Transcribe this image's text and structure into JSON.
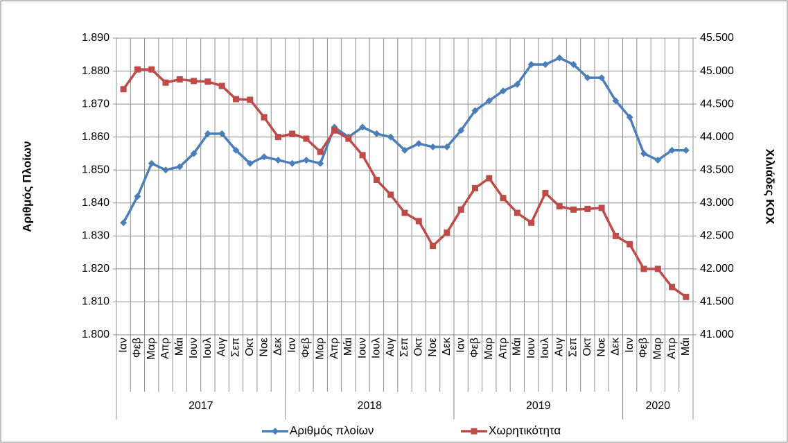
{
  "chart_data": {
    "type": "line",
    "y_label": "Αριθμός Πλοίων",
    "y2_label": "Χιλιάδες ΚΟΧ",
    "categories": [
      "Ιαν",
      "Φεβ",
      "Μαρ",
      "Απρ",
      "Μάι",
      "Ιουν",
      "Ιουλ",
      "Αυγ",
      "Σεπ",
      "Οκτ",
      "Νοε",
      "Δεκ",
      "Ιαν",
      "Φεβ",
      "Μαρ",
      "Απρ",
      "Μάι",
      "Ιουν",
      "Ιουλ",
      "Αυγ",
      "Σεπ",
      "Οκτ",
      "Νοε",
      "Δεκ",
      "Ιαν",
      "Φεβ",
      "Μαρ",
      "Απρ",
      "Μάι",
      "Ιουν",
      "Ιουλ",
      "Αυγ",
      "Σεπ",
      "Οκτ",
      "Νοε",
      "Δεκ",
      "Ιαν",
      "Φεβ",
      "Μαρ",
      "Απρ",
      "Μάι"
    ],
    "years": [
      "2017",
      "2018",
      "2019",
      "2020"
    ],
    "series": [
      {
        "name": "Αριθμός πλοίων",
        "color": "#4a7ebb",
        "marker": "diamond",
        "axis": "y",
        "values": [
          1834,
          1842,
          1852,
          1850,
          1851,
          1855,
          1861,
          1861,
          1856,
          1852,
          1854,
          1853,
          1852,
          1853,
          1852,
          1863,
          1860,
          1863,
          1861,
          1860,
          1856,
          1858,
          1857,
          1857,
          1862,
          1868,
          1871,
          1874,
          1876,
          1882,
          1882,
          1884,
          1882,
          1878,
          1878,
          1871,
          1866,
          1855,
          1853,
          1856,
          1856
        ]
      },
      {
        "name": "Χωρητικότητα",
        "color": "#be4b48",
        "marker": "square",
        "axis": "y2",
        "values": [
          44725,
          45025,
          45025,
          44825,
          44875,
          44850,
          44840,
          44775,
          44575,
          44565,
          44300,
          44000,
          44050,
          43975,
          43775,
          44100,
          43975,
          43725,
          43350,
          43125,
          42850,
          42725,
          42350,
          42550,
          42900,
          43225,
          43375,
          43075,
          42850,
          42700,
          43150,
          42950,
          42900,
          42910,
          42925,
          42500,
          42375,
          42000,
          42000,
          41725,
          41575
        ]
      }
    ],
    "ylim": [
      1800,
      1890
    ],
    "yticks": [
      {
        "value": 1800,
        "label": "1.800"
      },
      {
        "value": 1810,
        "label": "1.810"
      },
      {
        "value": 1820,
        "label": "1.820"
      },
      {
        "value": 1830,
        "label": "1.830"
      },
      {
        "value": 1840,
        "label": "1.840"
      },
      {
        "value": 1850,
        "label": "1.850"
      },
      {
        "value": 1860,
        "label": "1.860"
      },
      {
        "value": 1870,
        "label": "1.870"
      },
      {
        "value": 1880,
        "label": "1.880"
      },
      {
        "value": 1890,
        "label": "1.890"
      }
    ],
    "y2lim": [
      41000,
      45500
    ],
    "y2ticks": [
      {
        "value": 41000,
        "label": "41.000"
      },
      {
        "value": 41500,
        "label": "41.500"
      },
      {
        "value": 42000,
        "label": "42.000"
      },
      {
        "value": 42500,
        "label": "42.500"
      },
      {
        "value": 43000,
        "label": "43.000"
      },
      {
        "value": 43500,
        "label": "43.500"
      },
      {
        "value": 44000,
        "label": "44.000"
      },
      {
        "value": 44500,
        "label": "44.500"
      },
      {
        "value": 45000,
        "label": "45.000"
      },
      {
        "value": 45500,
        "label": "45.500"
      }
    ],
    "grid": true,
    "legend": "bottom"
  }
}
